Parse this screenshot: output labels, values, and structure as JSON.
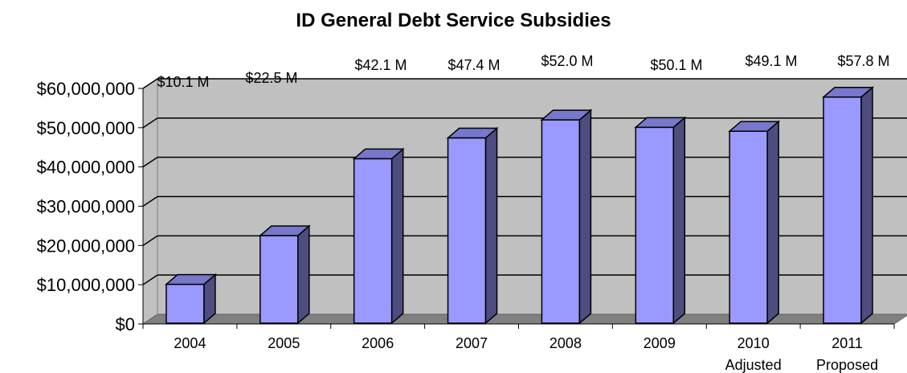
{
  "chart_data": {
    "type": "bar",
    "title": "ID General Debt Service Subsidies",
    "categories": [
      [
        "2004"
      ],
      [
        "2005"
      ],
      [
        "2006"
      ],
      [
        "2007"
      ],
      [
        "2008"
      ],
      [
        "2009"
      ],
      [
        "2010",
        "Adjusted"
      ],
      [
        "2011",
        "Proposed"
      ]
    ],
    "values": [
      10100000,
      22500000,
      42100000,
      47400000,
      52000000,
      50100000,
      49100000,
      57800000
    ],
    "data_labels": [
      "$10.1 M",
      "$22.5 M",
      "$42.1 M",
      "$47.4 M",
      "$52.0 M",
      "$50.1 M",
      "$49.1 M",
      "$57.8 M"
    ],
    "ylim": [
      0,
      60000000
    ],
    "yticks": [
      0,
      10000000,
      20000000,
      30000000,
      40000000,
      50000000,
      60000000
    ],
    "ytick_labels": [
      "$0",
      "$10,000,000",
      "$20,000,000",
      "$30,000,000",
      "$40,000,000",
      "$50,000,000",
      "$60,000,000"
    ],
    "grid": true,
    "style": "3d-column",
    "colors": {
      "bar_front": "#9999ff",
      "bar_side": "#4d4d80",
      "bar_top": "#7777cc",
      "wall": "#c0c0c0",
      "floor": "#808080"
    }
  }
}
